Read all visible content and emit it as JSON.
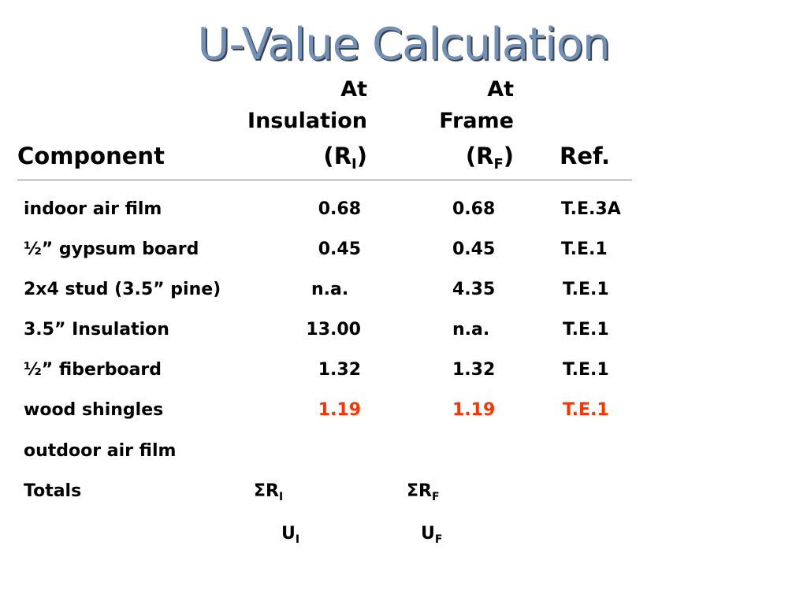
{
  "slide": {
    "title": "U-Value Calculation"
  },
  "header": {
    "insulation_line1": "At",
    "insulation_line2": "Insulation",
    "insulation_symbol": "R",
    "insulation_sub": "I",
    "frame_line1": "At",
    "frame_line2": "Frame",
    "frame_symbol": "R",
    "frame_sub": "F",
    "component_label": "Component",
    "ref_label": "Ref."
  },
  "rows": [
    {
      "component": "indoor air film",
      "insulation": "0.68",
      "frame": "0.68",
      "ref": "T.E.3A",
      "highlight": false
    },
    {
      "component": "½” gypsum board",
      "insulation": "0.45",
      "frame": "0.45",
      "ref": "T.E.1",
      "highlight": false
    },
    {
      "component": "2x4 stud (3.5” pine)",
      "insulation": "n.a.",
      "frame": "4.35",
      "ref": "T.E.1",
      "highlight": false
    },
    {
      "component": "3.5” Insulation",
      "insulation": "13.00",
      "frame": "n.a.",
      "ref": "T.E.1",
      "highlight": false
    },
    {
      "component": "½” fiberboard",
      "insulation": "1.32",
      "frame": "1.32",
      "ref": "T.E.1",
      "highlight": false
    },
    {
      "component": "wood shingles",
      "insulation": "1.19",
      "frame": "1.19",
      "ref": "T.E.1",
      "highlight": true
    },
    {
      "component": "outdoor air film",
      "insulation": "",
      "frame": "",
      "ref": "",
      "highlight": false
    }
  ],
  "totals": {
    "label": "Totals",
    "sum_insulation": "ΣR",
    "sum_insulation_sub": "I",
    "sum_frame": "ΣR",
    "sum_frame_sub": "F",
    "u_insulation": "U",
    "u_insulation_sub": "I",
    "u_frame": "U",
    "u_frame_sub": "F"
  },
  "colors": {
    "title": "#7090b8",
    "highlight": "#ff3300",
    "text": "#000000"
  }
}
